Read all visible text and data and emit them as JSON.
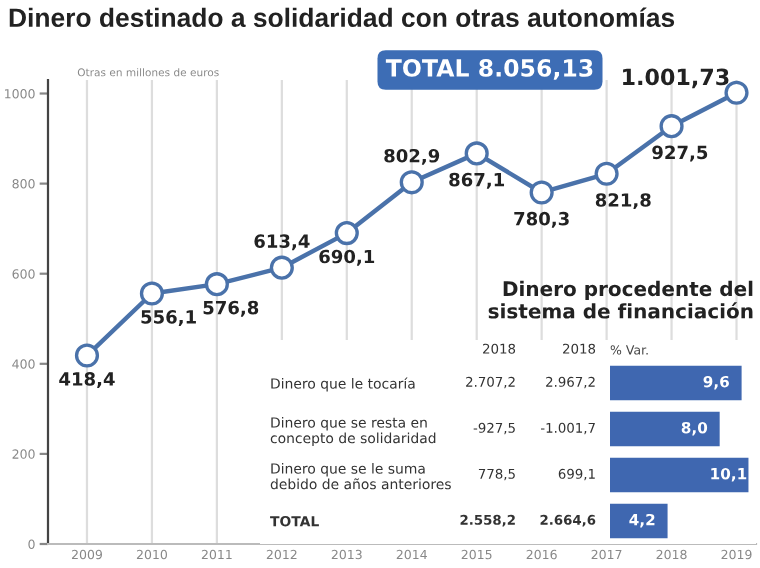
{
  "chart_data": [
    {
      "type": "line",
      "title": "Dinero destinado a solidaridad con otras autonomías",
      "ylabel": "Otras en millones de euros",
      "categories": [
        "2009",
        "2010",
        "2011",
        "2012",
        "2013",
        "2014",
        "2015",
        "2016",
        "2017",
        "2018",
        "2019"
      ],
      "series": [
        {
          "color": "#4a72aa",
          "values": [
            418.4,
            556.1,
            576.8,
            613.4,
            690.1,
            802.9,
            867.1,
            780.3,
            821.8,
            927.5,
            1001.73
          ],
          "value_labels": [
            "418,4",
            "556,1",
            "576,8",
            "613,4",
            "690,1",
            "802,9",
            "867,1",
            "780,3",
            "821,8",
            "927,5",
            "1.001,73"
          ]
        }
      ],
      "ylim": [
        0,
        1030
      ],
      "yticks": [
        0,
        200,
        400,
        600,
        800,
        1000
      ],
      "grid": "x",
      "marker": "circle",
      "line_style": "solid",
      "annotations": [
        "TOTAL 8.056,13"
      ]
    },
    {
      "type": "bar",
      "orientation": "horizontal",
      "title": "Dinero procedente del\nsistema de financiación",
      "xlabel": "% Var.",
      "categories": [
        "Dinero que le tocaría",
        "Dinero que se resta en\nconcepto de solidaridad",
        "Dinero que se le suma\ndebido de años anteriores",
        "TOTAL"
      ],
      "values": [
        9.6,
        8.0,
        10.1,
        4.2
      ],
      "value_labels": [
        "9,6",
        "8,0",
        "10,1",
        "4,2"
      ],
      "color": "#3f67b0",
      "annotations": [
        "2018",
        "2018",
        "2.707,2",
        "2.967,2",
        "-927,5",
        "-1.001,7",
        "778,5",
        "699,1",
        "2.558,2",
        "2.664,6"
      ]
    }
  ]
}
